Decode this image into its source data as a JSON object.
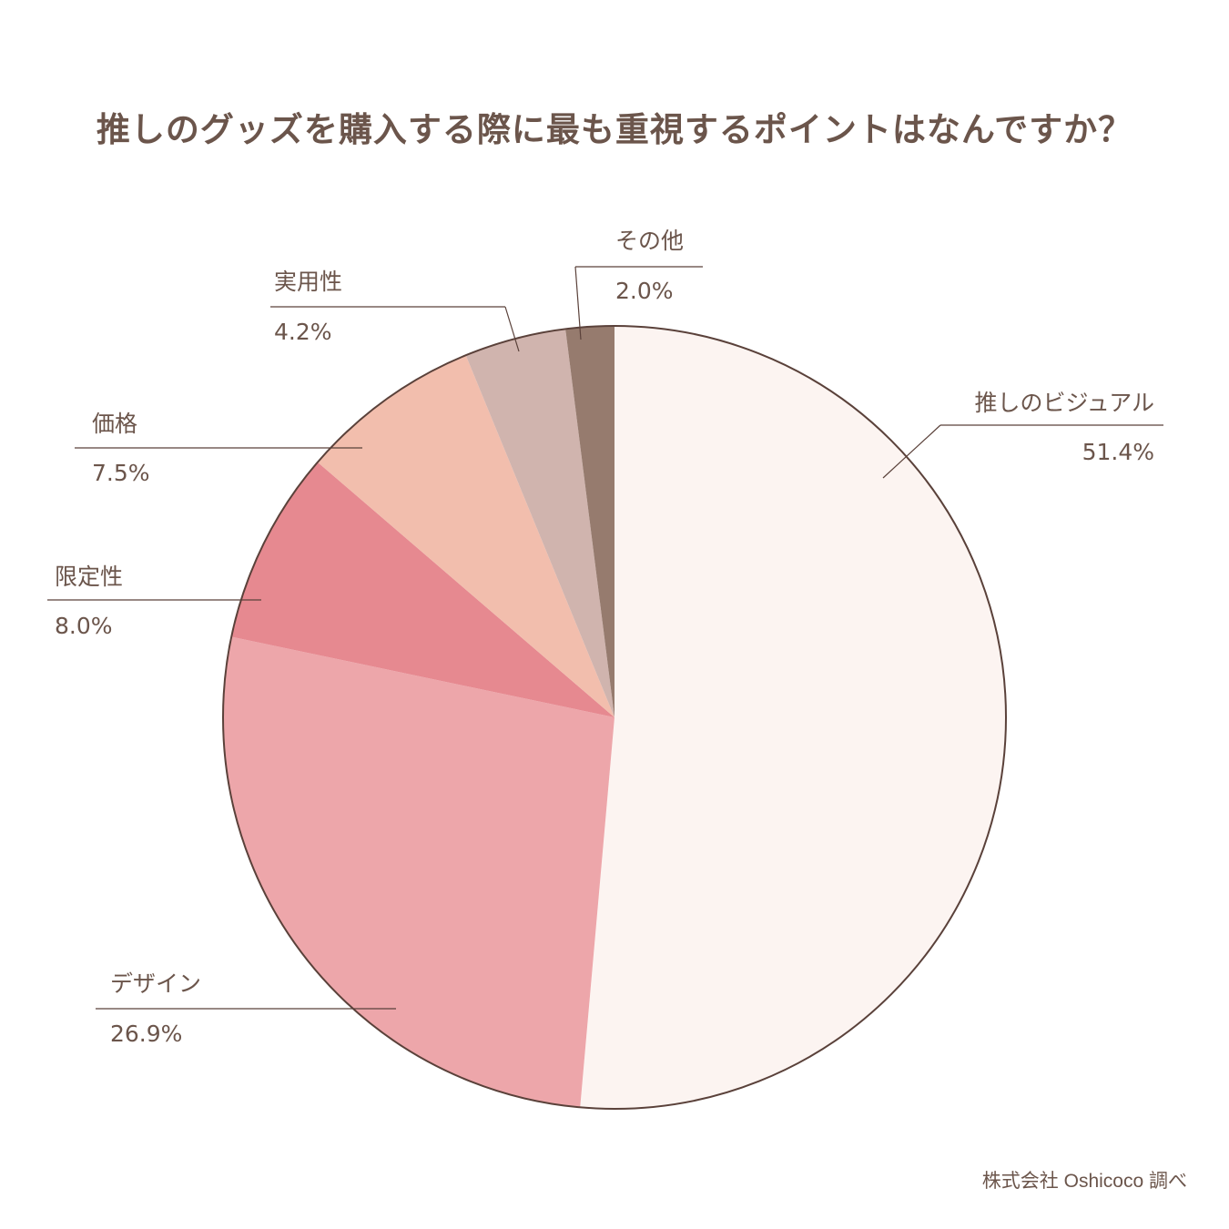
{
  "title": "推しのグッズを購入する際に最も重視するポイントはなんですか？",
  "source": "株式会社 Oshicoco 調べ",
  "chart_data": {
    "type": "pie",
    "title": "推しのグッズを購入する際に最も重視するポイントはなんですか？",
    "slices": [
      {
        "label": "推しのビジュアル",
        "value": 51.4,
        "display": "51.4%",
        "color": "#fcf4f1"
      },
      {
        "label": "デザイン",
        "value": 26.9,
        "display": "26.9%",
        "color": "#eda6aa"
      },
      {
        "label": "限定性",
        "value": 8.0,
        "display": "8.0%",
        "color": "#e68990"
      },
      {
        "label": "価格",
        "value": 7.5,
        "display": "7.5%",
        "color": "#f2bead"
      },
      {
        "label": "実用性",
        "value": 4.2,
        "display": "4.2%",
        "color": "#d0b4ae"
      },
      {
        "label": "その他",
        "value": 2.0,
        "display": "2.0%",
        "color": "#967b6e"
      }
    ],
    "start": "12 o'clock",
    "direction": "clockwise",
    "legend": "none",
    "outline_color": "#5a413a"
  }
}
